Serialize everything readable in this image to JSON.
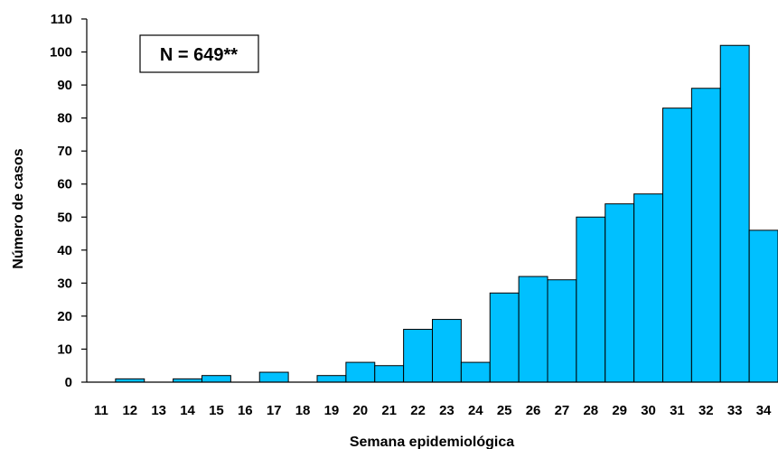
{
  "chart_data": {
    "type": "bar",
    "title": "",
    "xlabel": "Semana epidemiológica",
    "ylabel": "Número de casos",
    "categories": [
      "11",
      "12",
      "13",
      "14",
      "15",
      "16",
      "17",
      "18",
      "19",
      "20",
      "21",
      "22",
      "23",
      "24",
      "25",
      "26",
      "27",
      "28",
      "29",
      "30",
      "31",
      "32",
      "33",
      "34"
    ],
    "values": [
      0,
      1,
      0,
      1,
      2,
      0,
      3,
      0,
      2,
      6,
      5,
      16,
      19,
      6,
      27,
      32,
      31,
      50,
      54,
      57,
      83,
      89,
      102,
      46
    ],
    "ylim": [
      0,
      110
    ],
    "yticks": [
      0,
      10,
      20,
      30,
      40,
      50,
      60,
      70,
      80,
      90,
      100,
      110
    ],
    "grid": false,
    "legend": "none",
    "annotation": "N = 649**",
    "colors": {
      "bar_fill": "#00C0FF",
      "bar_stroke": "#000000",
      "axis": "#000000"
    }
  }
}
